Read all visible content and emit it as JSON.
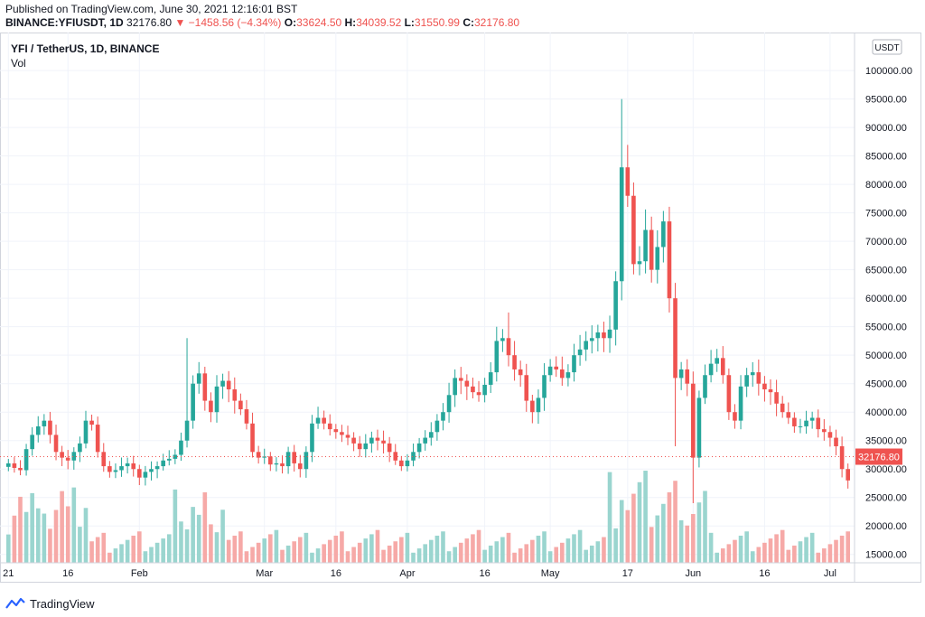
{
  "header": {
    "published": "Published on TradingView.com, June 30, 2021 12:16:01 BST",
    "symbol": "BINANCE:YFIUSDT, 1D",
    "last": "32176.80",
    "change": "−1458.56 (−4.34%)",
    "o_label": "O:",
    "o_value": "33624.50",
    "h_label": "H:",
    "h_value": "34039.52",
    "l_label": "L:",
    "l_value": "31550.99",
    "c_label": "C:",
    "c_value": "32176.80"
  },
  "legend": {
    "title": "YFI / TetherUS, 1D, BINANCE",
    "vol": "Vol"
  },
  "footer": {
    "brand": "TradingView"
  },
  "colors": {
    "up": "#26a69a",
    "down": "#ef5350",
    "up_vol": "#9ad5cf",
    "down_vol": "#f6a9a7",
    "grid": "#f0f3fa",
    "axis_text": "#131722"
  },
  "chart_data": {
    "type": "candlestick",
    "currency": "USDT",
    "last_price_label": "32176.80",
    "last_price": 32176.8,
    "y_ticks": [
      "100000.00",
      "95000.00",
      "90000.00",
      "85000.00",
      "80000.00",
      "75000.00",
      "70000.00",
      "65000.00",
      "60000.00",
      "55000.00",
      "50000.00",
      "45000.00",
      "40000.00",
      "35000.00",
      "30000.00",
      "25000.00",
      "20000.00",
      "15000.00"
    ],
    "y_tick_values": [
      100000,
      95000,
      90000,
      85000,
      80000,
      75000,
      70000,
      65000,
      60000,
      55000,
      50000,
      45000,
      40000,
      35000,
      30000,
      25000,
      20000,
      15000
    ],
    "ylim": [
      12500,
      102000
    ],
    "x_ticks": [
      {
        "label": "21",
        "index": 0
      },
      {
        "label": "16",
        "index": 10
      },
      {
        "label": "Feb",
        "index": 22
      },
      {
        "label": "Mar",
        "index": 43
      },
      {
        "label": "16",
        "index": 55
      },
      {
        "label": "Apr",
        "index": 67
      },
      {
        "label": "16",
        "index": 80
      },
      {
        "label": "May",
        "index": 91
      },
      {
        "label": "17",
        "index": 104
      },
      {
        "label": "Jun",
        "index": 115
      },
      {
        "label": "16",
        "index": 127
      },
      {
        "label": "Jul",
        "index": 138
      }
    ],
    "x_count": 142,
    "ohlc": [],
    "volume_max": 29000
  }
}
